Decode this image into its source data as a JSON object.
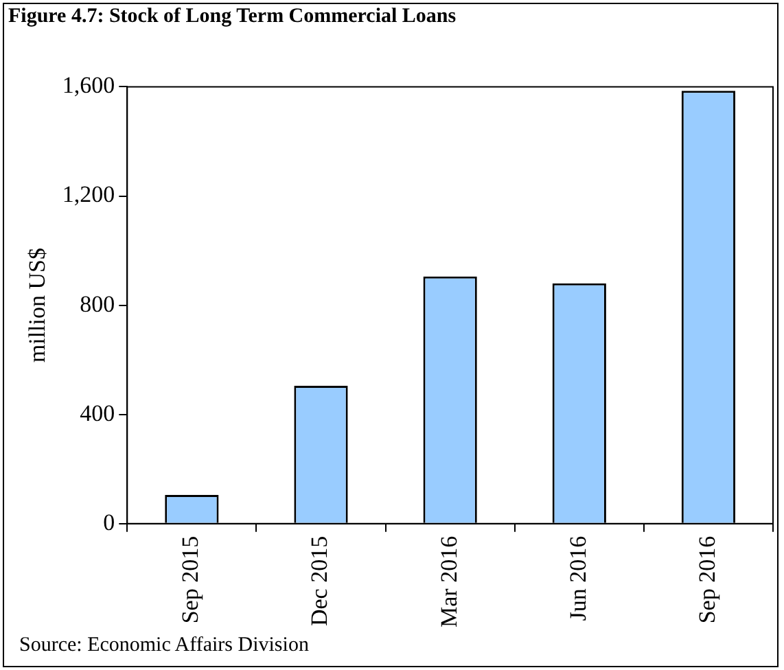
{
  "chart_data": {
    "type": "bar",
    "title": "Figure 4.7: Stock of  Long Term Commercial Loans",
    "ylabel": "million US$",
    "categories": [
      "Sep 2015",
      "Dec 2015",
      "Mar 2016",
      "Jun 2016",
      "Sep 2016"
    ],
    "values": [
      105,
      505,
      905,
      880,
      1585
    ],
    "color": "#99ccff",
    "ylim": [
      0,
      1600
    ],
    "yticks": [
      {
        "value": 0,
        "label": "0"
      },
      {
        "value": 400,
        "label": "400"
      },
      {
        "value": 800,
        "label": "800"
      },
      {
        "value": 1200,
        "label": "1,200"
      },
      {
        "value": 1600,
        "label": "1,600"
      }
    ],
    "grid": false,
    "legend": false,
    "annotations": [
      "Source: Economic Affairs Division"
    ]
  }
}
